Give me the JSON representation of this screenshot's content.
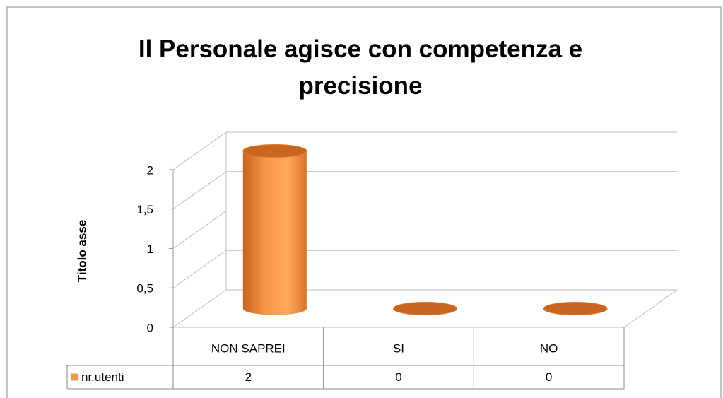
{
  "chart_data": {
    "type": "bar3d",
    "title": "Il Personale agisce con competenza e precisione",
    "y_label": "Titolo asse",
    "categories": [
      "NON SAPREI",
      "SI",
      "NO"
    ],
    "series": [
      {
        "name": "nr.utenti",
        "color": "#f79646",
        "values": [
          2,
          0,
          0
        ]
      }
    ],
    "ylim": [
      0,
      2
    ],
    "yticks": [
      0,
      {
        "value": 0.5,
        "label": "0,5"
      },
      1,
      {
        "value": 1.5,
        "label": "1,5"
      },
      2
    ],
    "grid": true,
    "data_table": true
  }
}
